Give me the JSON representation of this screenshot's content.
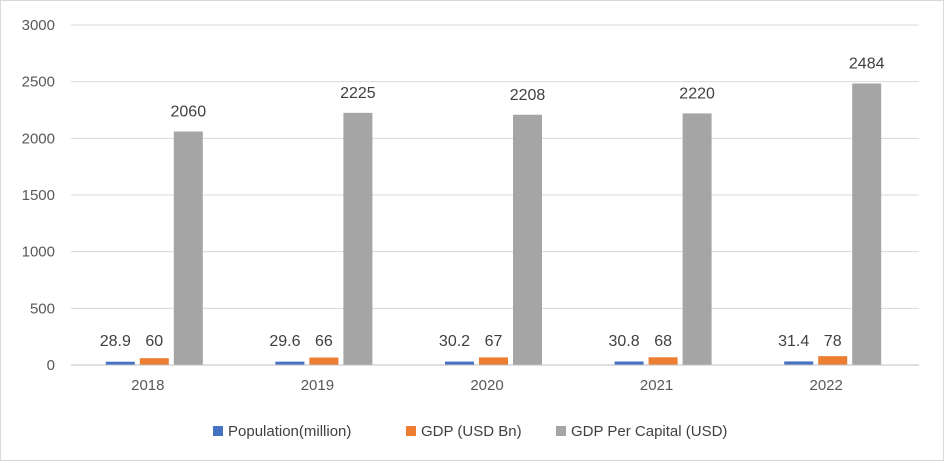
{
  "chart_data": {
    "type": "bar",
    "title": "",
    "xlabel": "",
    "ylabel": "",
    "categories": [
      "2018",
      "2019",
      "2020",
      "2021",
      "2022"
    ],
    "series": [
      {
        "name": "Population(million)",
        "values": [
          28.9,
          29.6,
          30.2,
          30.8,
          31.4
        ],
        "labels": [
          "28.9",
          "29.6",
          "30.2",
          "30.8",
          "31.4"
        ],
        "color": "#4472c4"
      },
      {
        "name": "GDP (USD Bn)",
        "values": [
          60,
          66,
          67,
          68,
          78
        ],
        "labels": [
          "60",
          "66",
          "67",
          "68",
          "78"
        ],
        "color": "#ed7d31"
      },
      {
        "name": "GDP Per Capital (USD)",
        "values": [
          2060,
          2225,
          2208,
          2220,
          2484
        ],
        "labels": [
          "2060",
          "2225",
          "2208",
          "2220",
          "2484"
        ],
        "color": "#a5a5a5"
      }
    ],
    "ylim": [
      0,
      3000
    ],
    "yticks": [
      0,
      500,
      1000,
      1500,
      2000,
      2500,
      3000
    ],
    "ytick_labels": [
      "0",
      "500",
      "1000",
      "1500",
      "2000",
      "2500",
      "3000"
    ],
    "grid": true,
    "legend_position": "bottom",
    "gridline_color": "#d9d9d9",
    "axis_color": "#bfbfbf"
  }
}
